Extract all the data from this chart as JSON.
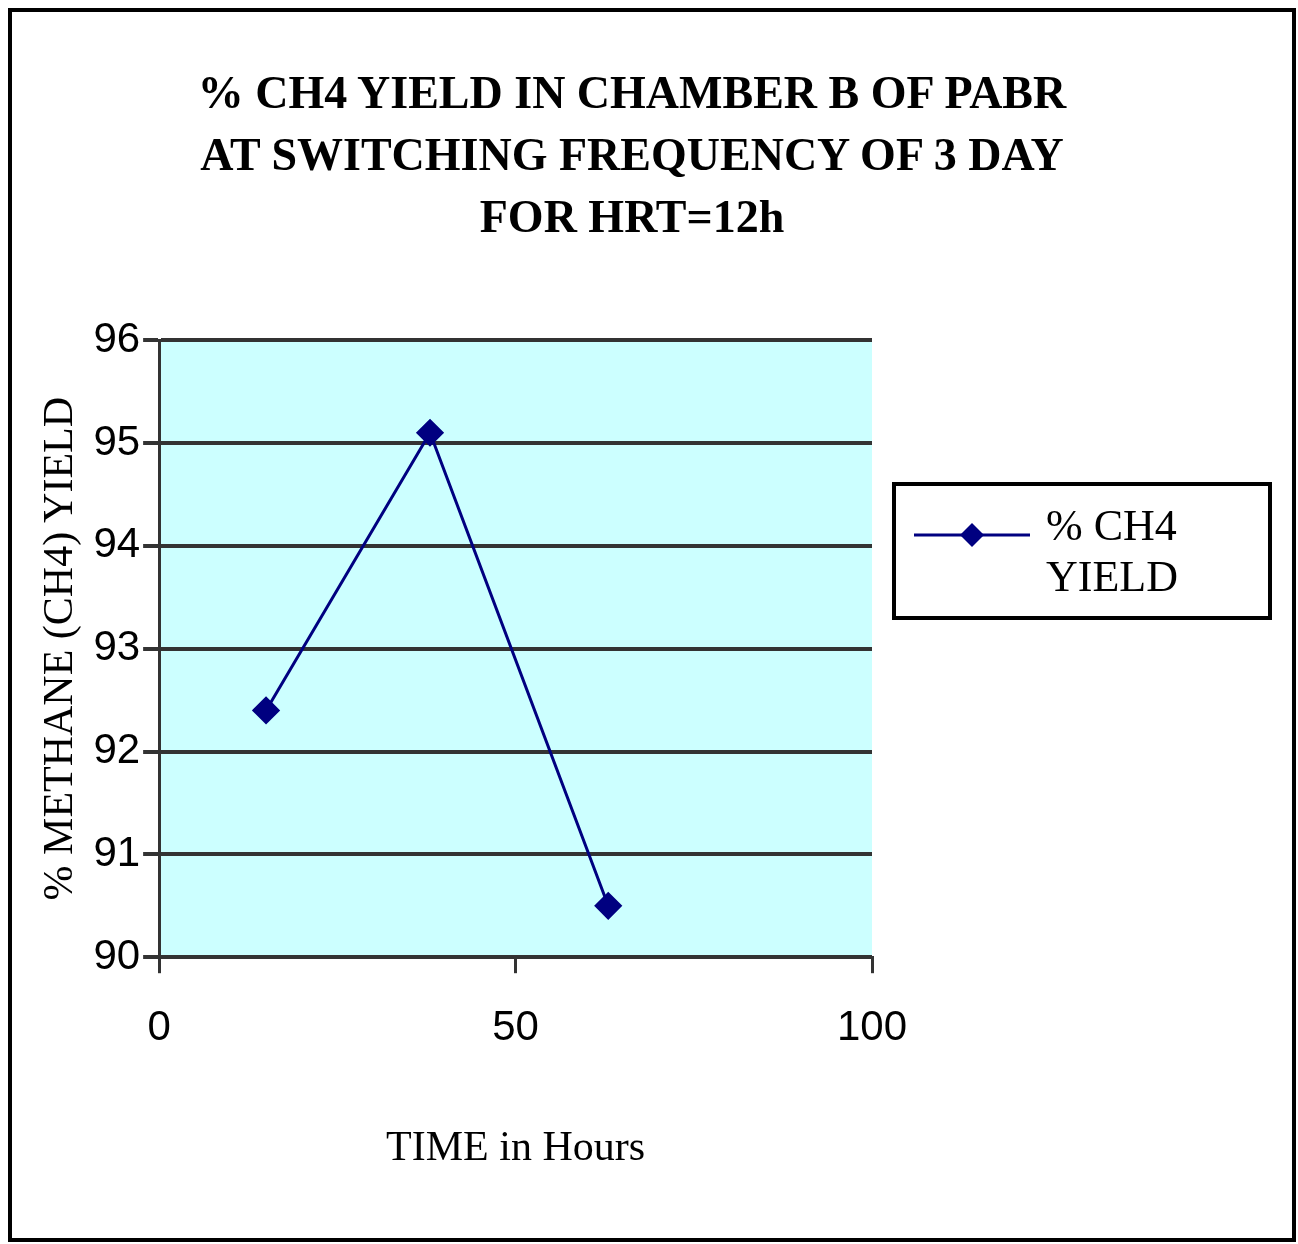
{
  "chart_data": {
    "type": "line",
    "title": "% CH4 YIELD IN CHAMBER B OF PABR AT SWITCHING FREQUENCY OF 3 DAY FOR HRT=12h",
    "xlabel": "TIME in Hours",
    "ylabel": "% METHANE (CH4) YIELD",
    "x": [
      15,
      38,
      63
    ],
    "series": [
      {
        "name": "% CH4 YIELD",
        "color": "#000080",
        "values": [
          92.4,
          95.1,
          90.5
        ]
      }
    ],
    "xlim": [
      0,
      100
    ],
    "xticks": [
      0,
      50,
      100
    ],
    "ylim": [
      90,
      96
    ],
    "yticks": [
      90,
      91,
      92,
      93,
      94,
      95,
      96
    ],
    "grid": "y",
    "legend": "right",
    "marker": "diamond",
    "line_style": "solid"
  }
}
